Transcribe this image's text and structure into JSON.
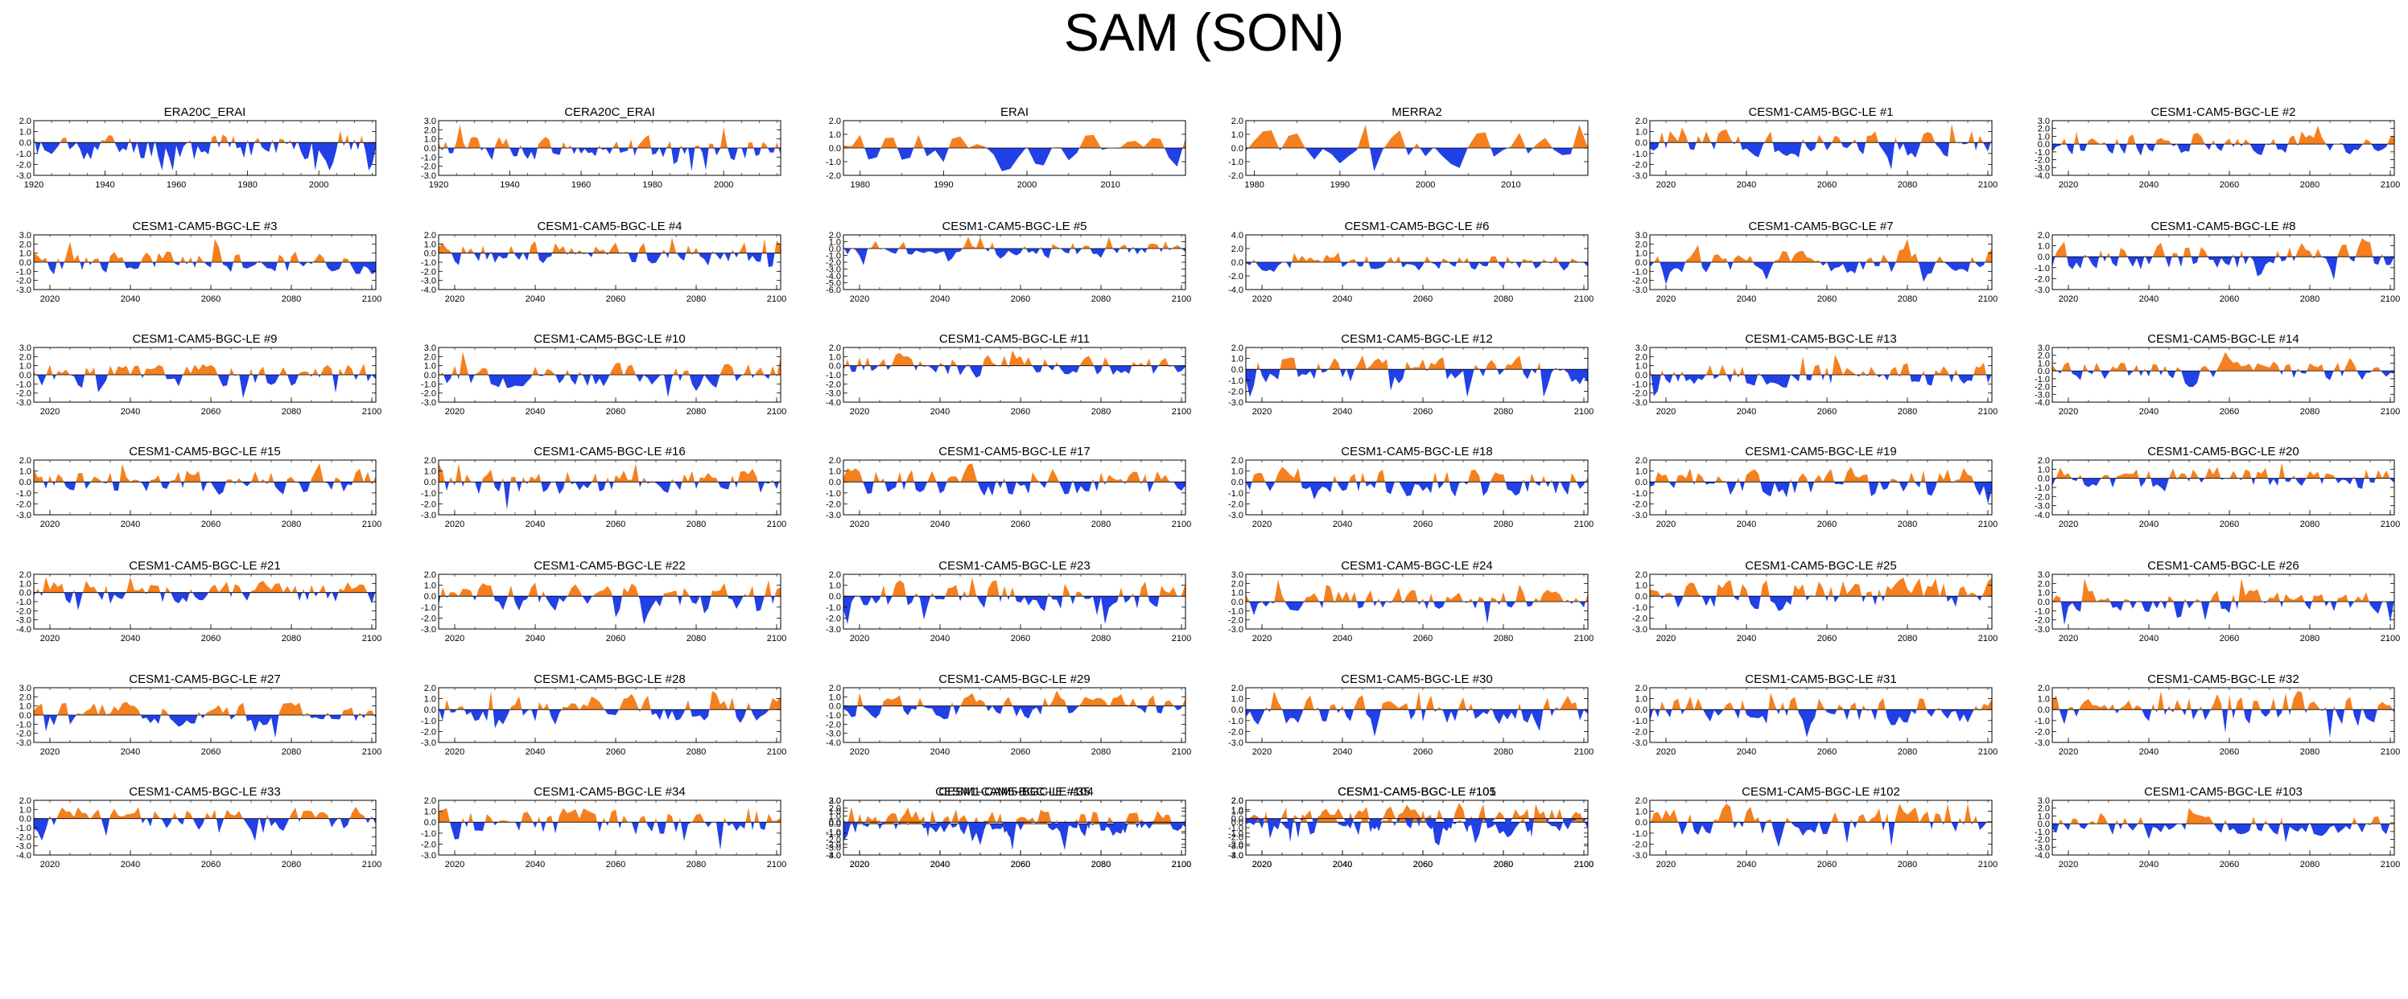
{
  "title": "SAM (SON)",
  "colors": {
    "positive": "#F5801F",
    "negative": "#2140E6",
    "axis": "#000000"
  },
  "chart_data": [
    {
      "type": "area",
      "title": "ERA20C_ERAI",
      "xlim": [
        1920,
        2016
      ],
      "xticks": [
        1920,
        1940,
        1960,
        1980,
        2000
      ],
      "ylim": [
        -3,
        2
      ],
      "yticks": [
        "2.0",
        "1.0",
        "0.0",
        "-1.0",
        "-2.0",
        "-3.0"
      ],
      "seed": 11,
      "bias": -0.3
    },
    {
      "type": "area",
      "title": "CERA20C_ERAI",
      "xlim": [
        1920,
        2016
      ],
      "xticks": [
        1920,
        1940,
        1960,
        1980,
        2000
      ],
      "ylim": [
        -3,
        3
      ],
      "yticks": [
        "3.0",
        "2.0",
        "1.0",
        "0.0",
        "-1.0",
        "-2.0",
        "-3.0"
      ],
      "seed": 12,
      "bias": 0
    },
    {
      "type": "area",
      "title": "ERAI",
      "xlim": [
        1978,
        2019
      ],
      "xticks": [
        1980,
        1990,
        2000,
        2010
      ],
      "ylim": [
        -2,
        2
      ],
      "yticks": [
        "2.0",
        "1.0",
        "0.0",
        "-1.0",
        "-2.0"
      ],
      "seed": 13,
      "bias": 0
    },
    {
      "type": "area",
      "title": "MERRA2",
      "xlim": [
        1979,
        2019
      ],
      "xticks": [
        1980,
        1990,
        2000,
        2010
      ],
      "ylim": [
        -2,
        2
      ],
      "yticks": [
        "2.0",
        "1.0",
        "0.0",
        "-1.0",
        "-2.0"
      ],
      "seed": 14,
      "bias": 0
    },
    {
      "type": "area",
      "title": "CESM1-CAM5-BGC-LE #1",
      "xlim": [
        2016,
        2101
      ],
      "xticks": [
        2020,
        2040,
        2060,
        2080,
        2100
      ],
      "ylim": [
        -3,
        2
      ],
      "yticks": [
        "2.0",
        "1.0",
        "0.0",
        "-1.0",
        "-2.0",
        "-3.0"
      ],
      "seed": 21,
      "bias": 0
    },
    {
      "type": "area",
      "title": "CESM1-CAM5-BGC-LE #2",
      "xlim": [
        2016,
        2101
      ],
      "xticks": [
        2020,
        2040,
        2060,
        2080,
        2100
      ],
      "ylim": [
        -4,
        3
      ],
      "yticks": [
        "3.0",
        "2.0",
        "1.0",
        "0.0",
        "-1.0",
        "-2.0",
        "-3.0",
        "-4.0"
      ],
      "seed": 22,
      "bias": 0
    },
    {
      "type": "area",
      "title": "CESM1-CAM5-BGC-LE #3",
      "xlim": [
        2016,
        2101
      ],
      "xticks": [
        2020,
        2040,
        2060,
        2080,
        2100
      ],
      "ylim": [
        -3,
        3
      ],
      "yticks": [
        "3.0",
        "2.0",
        "1.0",
        "0.0",
        "-1.0",
        "-2.0",
        "-3.0"
      ],
      "seed": 23,
      "bias": 0
    },
    {
      "type": "area",
      "title": "CESM1-CAM5-BGC-LE #4",
      "xlim": [
        2016,
        2101
      ],
      "xticks": [
        2020,
        2040,
        2060,
        2080,
        2100
      ],
      "ylim": [
        -4,
        2
      ],
      "yticks": [
        "2.0",
        "1.0",
        "0.0",
        "-1.0",
        "-2.0",
        "-3.0",
        "-4.0"
      ],
      "seed": 24,
      "bias": 0
    },
    {
      "type": "area",
      "title": "CESM1-CAM5-BGC-LE #5",
      "xlim": [
        2016,
        2101
      ],
      "xticks": [
        2020,
        2040,
        2060,
        2080,
        2100
      ],
      "ylim": [
        -6,
        2
      ],
      "yticks": [
        "2.0",
        "1.0",
        "0.0",
        "-1.0",
        "-2.0",
        "-3.0",
        "-4.0",
        "-5.0",
        "-6.0"
      ],
      "seed": 25,
      "bias": 0
    },
    {
      "type": "area",
      "title": "CESM1-CAM5-BGC-LE #6",
      "xlim": [
        2016,
        2101
      ],
      "xticks": [
        2020,
        2040,
        2060,
        2080,
        2100
      ],
      "ylim": [
        -4,
        4
      ],
      "yticks": [
        "4.0",
        "2.0",
        "0.0",
        "-2.0",
        "-4.0"
      ],
      "seed": 26,
      "bias": 0
    },
    {
      "type": "area",
      "title": "CESM1-CAM5-BGC-LE #7",
      "xlim": [
        2016,
        2101
      ],
      "xticks": [
        2020,
        2040,
        2060,
        2080,
        2100
      ],
      "ylim": [
        -3,
        3
      ],
      "yticks": [
        "3.0",
        "2.0",
        "1.0",
        "0.0",
        "-1.0",
        "-2.0",
        "-3.0"
      ],
      "seed": 27,
      "bias": 0
    },
    {
      "type": "area",
      "title": "CESM1-CAM5-BGC-LE #8",
      "xlim": [
        2016,
        2101
      ],
      "xticks": [
        2020,
        2040,
        2060,
        2080,
        2100
      ],
      "ylim": [
        -3,
        2
      ],
      "yticks": [
        "2.0",
        "1.0",
        "0.0",
        "-1.0",
        "-2.0",
        "-3.0"
      ],
      "seed": 28,
      "bias": 0
    },
    {
      "type": "area",
      "title": "CESM1-CAM5-BGC-LE #9",
      "xlim": [
        2016,
        2101
      ],
      "xticks": [
        2020,
        2040,
        2060,
        2080,
        2100
      ],
      "ylim": [
        -3,
        3
      ],
      "yticks": [
        "3.0",
        "2.0",
        "1.0",
        "0.0",
        "-1.0",
        "-2.0",
        "-3.0"
      ],
      "seed": 31,
      "bias": 0
    },
    {
      "type": "area",
      "title": "CESM1-CAM5-BGC-LE #10",
      "xlim": [
        2016,
        2101
      ],
      "xticks": [
        2020,
        2040,
        2060,
        2080,
        2100
      ],
      "ylim": [
        -3,
        3
      ],
      "yticks": [
        "3.0",
        "2.0",
        "1.0",
        "0.0",
        "-1.0",
        "-2.0",
        "-3.0"
      ],
      "seed": 32,
      "bias": 0
    },
    {
      "type": "area",
      "title": "CESM1-CAM5-BGC-LE #11",
      "xlim": [
        2016,
        2101
      ],
      "xticks": [
        2020,
        2040,
        2060,
        2080,
        2100
      ],
      "ylim": [
        -4,
        2
      ],
      "yticks": [
        "2.0",
        "1.0",
        "0.0",
        "-1.0",
        "-2.0",
        "-3.0",
        "-4.0"
      ],
      "seed": 33,
      "bias": 0
    },
    {
      "type": "area",
      "title": "CESM1-CAM5-BGC-LE #12",
      "xlim": [
        2016,
        2101
      ],
      "xticks": [
        2020,
        2040,
        2060,
        2080,
        2100
      ],
      "ylim": [
        -3,
        2
      ],
      "yticks": [
        "2.0",
        "1.0",
        "0.0",
        "-1.0",
        "-2.0",
        "-3.0"
      ],
      "seed": 34,
      "bias": 0
    },
    {
      "type": "area",
      "title": "CESM1-CAM5-BGC-LE #13",
      "xlim": [
        2016,
        2101
      ],
      "xticks": [
        2020,
        2040,
        2060,
        2080,
        2100
      ],
      "ylim": [
        -3,
        3
      ],
      "yticks": [
        "3.0",
        "2.0",
        "1.0",
        "0.0",
        "-1.0",
        "-2.0",
        "-3.0"
      ],
      "seed": 35,
      "bias": 0
    },
    {
      "type": "area",
      "title": "CESM1-CAM5-BGC-LE #14",
      "xlim": [
        2016,
        2101
      ],
      "xticks": [
        2020,
        2040,
        2060,
        2080,
        2100
      ],
      "ylim": [
        -4,
        3
      ],
      "yticks": [
        "3.0",
        "2.0",
        "1.0",
        "0.0",
        "-1.0",
        "-2.0",
        "-3.0",
        "-4.0"
      ],
      "seed": 36,
      "bias": 0
    },
    {
      "type": "area",
      "title": "CESM1-CAM5-BGC-LE #15",
      "xlim": [
        2016,
        2101
      ],
      "xticks": [
        2020,
        2040,
        2060,
        2080,
        2100
      ],
      "ylim": [
        -3,
        2
      ],
      "yticks": [
        "2.0",
        "1.0",
        "0.0",
        "-1.0",
        "-2.0",
        "-3.0"
      ],
      "seed": 41,
      "bias": 0
    },
    {
      "type": "area",
      "title": "CESM1-CAM5-BGC-LE #16",
      "xlim": [
        2016,
        2101
      ],
      "xticks": [
        2020,
        2040,
        2060,
        2080,
        2100
      ],
      "ylim": [
        -3,
        2
      ],
      "yticks": [
        "2.0",
        "1.0",
        "0.0",
        "-1.0",
        "-2.0",
        "-3.0"
      ],
      "seed": 42,
      "bias": 0
    },
    {
      "type": "area",
      "title": "CESM1-CAM5-BGC-LE #17",
      "xlim": [
        2016,
        2101
      ],
      "xticks": [
        2020,
        2040,
        2060,
        2080,
        2100
      ],
      "ylim": [
        -3,
        2
      ],
      "yticks": [
        "2.0",
        "1.0",
        "0.0",
        "-1.0",
        "-2.0",
        "-3.0"
      ],
      "seed": 43,
      "bias": 0
    },
    {
      "type": "area",
      "title": "CESM1-CAM5-BGC-LE #18",
      "xlim": [
        2016,
        2101
      ],
      "xticks": [
        2020,
        2040,
        2060,
        2080,
        2100
      ],
      "ylim": [
        -3,
        2
      ],
      "yticks": [
        "2.0",
        "1.0",
        "0.0",
        "-1.0",
        "-2.0",
        "-3.0"
      ],
      "seed": 44,
      "bias": 0
    },
    {
      "type": "area",
      "title": "CESM1-CAM5-BGC-LE #19",
      "xlim": [
        2016,
        2101
      ],
      "xticks": [
        2020,
        2040,
        2060,
        2080,
        2100
      ],
      "ylim": [
        -3,
        2
      ],
      "yticks": [
        "2.0",
        "1.0",
        "0.0",
        "-1.0",
        "-2.0",
        "-3.0"
      ],
      "seed": 45,
      "bias": 0
    },
    {
      "type": "area",
      "title": "CESM1-CAM5-BGC-LE #20",
      "xlim": [
        2016,
        2101
      ],
      "xticks": [
        2020,
        2040,
        2060,
        2080,
        2100
      ],
      "ylim": [
        -4,
        2
      ],
      "yticks": [
        "2.0",
        "1.0",
        "0.0",
        "-1.0",
        "-2.0",
        "-3.0",
        "-4.0"
      ],
      "seed": 46,
      "bias": 0
    },
    {
      "type": "area",
      "title": "CESM1-CAM5-BGC-LE #21",
      "xlim": [
        2016,
        2101
      ],
      "xticks": [
        2020,
        2040,
        2060,
        2080,
        2100
      ],
      "ylim": [
        -4,
        2
      ],
      "yticks": [
        "2.0",
        "1.0",
        "0.0",
        "-1.0",
        "-2.0",
        "-3.0",
        "-4.0"
      ],
      "seed": 51,
      "bias": 0
    },
    {
      "type": "area",
      "title": "CESM1-CAM5-BGC-LE #22",
      "xlim": [
        2016,
        2101
      ],
      "xticks": [
        2020,
        2040,
        2060,
        2080,
        2100
      ],
      "ylim": [
        -3,
        2
      ],
      "yticks": [
        "2.0",
        "1.0",
        "0.0",
        "-1.0",
        "-2.0",
        "-3.0"
      ],
      "seed": 52,
      "bias": 0
    },
    {
      "type": "area",
      "title": "CESM1-CAM5-BGC-LE #23",
      "xlim": [
        2016,
        2101
      ],
      "xticks": [
        2020,
        2040,
        2060,
        2080,
        2100
      ],
      "ylim": [
        -3,
        2
      ],
      "yticks": [
        "2.0",
        "1.0",
        "0.0",
        "-1.0",
        "-2.0",
        "-3.0"
      ],
      "seed": 53,
      "bias": 0
    },
    {
      "type": "area",
      "title": "CESM1-CAM5-BGC-LE #24",
      "xlim": [
        2016,
        2101
      ],
      "xticks": [
        2020,
        2040,
        2060,
        2080,
        2100
      ],
      "ylim": [
        -3,
        3
      ],
      "yticks": [
        "3.0",
        "2.0",
        "1.0",
        "0.0",
        "-1.0",
        "-2.0",
        "-3.0"
      ],
      "seed": 54,
      "bias": 0
    },
    {
      "type": "area",
      "title": "CESM1-CAM5-BGC-LE #25",
      "xlim": [
        2016,
        2101
      ],
      "xticks": [
        2020,
        2040,
        2060,
        2080,
        2100
      ],
      "ylim": [
        -3,
        2
      ],
      "yticks": [
        "2.0",
        "1.0",
        "0.0",
        "-1.0",
        "-2.0",
        "-3.0"
      ],
      "seed": 55,
      "bias": 0.2
    },
    {
      "type": "area",
      "title": "CESM1-CAM5-BGC-LE #26",
      "xlim": [
        2016,
        2101
      ],
      "xticks": [
        2020,
        2040,
        2060,
        2080,
        2100
      ],
      "ylim": [
        -3,
        3
      ],
      "yticks": [
        "3.0",
        "2.0",
        "1.0",
        "0.0",
        "-1.0",
        "-2.0",
        "-3.0"
      ],
      "seed": 56,
      "bias": 0
    },
    {
      "type": "area",
      "title": "CESM1-CAM5-BGC-LE #27",
      "xlim": [
        2016,
        2101
      ],
      "xticks": [
        2020,
        2040,
        2060,
        2080,
        2100
      ],
      "ylim": [
        -3,
        3
      ],
      "yticks": [
        "3.0",
        "2.0",
        "1.0",
        "0.0",
        "-1.0",
        "-2.0",
        "-3.0"
      ],
      "seed": 61,
      "bias": 0
    },
    {
      "type": "area",
      "title": "CESM1-CAM5-BGC-LE #28",
      "xlim": [
        2016,
        2101
      ],
      "xticks": [
        2020,
        2040,
        2060,
        2080,
        2100
      ],
      "ylim": [
        -3,
        2
      ],
      "yticks": [
        "2.0",
        "1.0",
        "0.0",
        "-1.0",
        "-2.0",
        "-3.0"
      ],
      "seed": 62,
      "bias": 0
    },
    {
      "type": "area",
      "title": "CESM1-CAM5-BGC-LE #29",
      "xlim": [
        2016,
        2101
      ],
      "xticks": [
        2020,
        2040,
        2060,
        2080,
        2100
      ],
      "ylim": [
        -4,
        2
      ],
      "yticks": [
        "2.0",
        "1.0",
        "0.0",
        "-1.0",
        "-2.0",
        "-3.0",
        "-4.0"
      ],
      "seed": 63,
      "bias": 0
    },
    {
      "type": "area",
      "title": "CESM1-CAM5-BGC-LE #30",
      "xlim": [
        2016,
        2101
      ],
      "xticks": [
        2020,
        2040,
        2060,
        2080,
        2100
      ],
      "ylim": [
        -3,
        2
      ],
      "yticks": [
        "2.0",
        "1.0",
        "0.0",
        "-1.0",
        "-2.0",
        "-3.0"
      ],
      "seed": 64,
      "bias": 0
    },
    {
      "type": "area",
      "title": "CESM1-CAM5-BGC-LE #31",
      "xlim": [
        2016,
        2101
      ],
      "xticks": [
        2020,
        2040,
        2060,
        2080,
        2100
      ],
      "ylim": [
        -3,
        2
      ],
      "yticks": [
        "2.0",
        "1.0",
        "0.0",
        "-1.0",
        "-2.0",
        "-3.0"
      ],
      "seed": 65,
      "bias": 0
    },
    {
      "type": "area",
      "title": "CESM1-CAM5-BGC-LE #32",
      "xlim": [
        2016,
        2101
      ],
      "xticks": [
        2020,
        2040,
        2060,
        2080,
        2100
      ],
      "ylim": [
        -3,
        2
      ],
      "yticks": [
        "2.0",
        "1.0",
        "0.0",
        "-1.0",
        "-2.0",
        "-3.0"
      ],
      "seed": 66,
      "bias": 0
    },
    {
      "type": "area",
      "title": "CESM1-CAM5-BGC-LE #33",
      "xlim": [
        2016,
        2101
      ],
      "xticks": [
        2020,
        2040,
        2060,
        2080,
        2100
      ],
      "ylim": [
        -4,
        2
      ],
      "yticks": [
        "2.0",
        "1.0",
        "0.0",
        "-1.0",
        "-2.0",
        "-3.0",
        "-4.0"
      ],
      "seed": 71,
      "bias": 0
    },
    {
      "type": "area",
      "title": "CESM1-CAM5-BGC-LE #34",
      "xlim": [
        2016,
        2101
      ],
      "xticks": [
        2020,
        2040,
        2060,
        2080,
        2100
      ],
      "ylim": [
        -3,
        2
      ],
      "yticks": [
        "2.0",
        "1.0",
        "0.0",
        "-1.0",
        "-2.0",
        "-3.0"
      ],
      "seed": 72,
      "bias": 0
    },
    {
      "type": "area",
      "title": "CESM1-CAM5-BGC-LE #35",
      "xlim": [
        2016,
        2101
      ],
      "xticks": [
        2020,
        2040,
        2060,
        2080,
        2100
      ],
      "ylim": [
        -4,
        3
      ],
      "yticks": [
        "3.0",
        "2.0",
        "1.0",
        "0.0",
        "-1.0",
        "-2.0",
        "-3.0",
        "-4.0"
      ],
      "seed": 73,
      "bias": 0
    },
    {
      "type": "area",
      "title": "CESM1-CAM5-BGC-LE #101",
      "xlim": [
        2016,
        2101
      ],
      "xticks": [
        2020,
        2040,
        2060,
        2080,
        2100
      ],
      "ylim": [
        -3,
        2
      ],
      "yticks": [
        "2.0",
        "1.0",
        "0.0",
        "-1.0",
        "-2.0",
        "-3.0"
      ],
      "seed": 74,
      "bias": 0
    },
    {
      "type": "area",
      "title": "CESM1-CAM5-BGC-LE #102",
      "xlim": [
        2016,
        2101
      ],
      "xticks": [
        2020,
        2040,
        2060,
        2080,
        2100
      ],
      "ylim": [
        -3,
        2
      ],
      "yticks": [
        "2.0",
        "1.0",
        "0.0",
        "-1.0",
        "-2.0",
        "-3.0"
      ],
      "seed": 75,
      "bias": 0
    },
    {
      "type": "area",
      "title": "CESM1-CAM5-BGC-LE #103",
      "xlim": [
        2016,
        2101
      ],
      "xticks": [
        2020,
        2040,
        2060,
        2080,
        2100
      ],
      "ylim": [
        -4,
        3
      ],
      "yticks": [
        "3.0",
        "2.0",
        "1.0",
        "0.0",
        "-1.0",
        "-2.0",
        "-3.0",
        "-4.0"
      ],
      "seed": 76,
      "bias": 0
    },
    {
      "type": "area",
      "title": "CESM1-CAM5-BGC-LE #104",
      "xlim": [
        2016,
        2101
      ],
      "xticks": [
        2020,
        2040,
        2060,
        2080,
        2100
      ],
      "ylim": [
        -3,
        2
      ],
      "yticks": [
        "2.0",
        "1.0",
        "0.0",
        "-1.0",
        "-2.0",
        "-3.0"
      ],
      "seed": 81,
      "bias": 0
    },
    {
      "type": "area",
      "title": "CESM1-CAM5-BGC-LE #105",
      "xlim": [
        2016,
        2101
      ],
      "xticks": [
        2020,
        2040,
        2060,
        2080,
        2100
      ],
      "ylim": [
        -4,
        2
      ],
      "yticks": [
        "2.0",
        "1.0",
        "0.0",
        "-1.0",
        "-2.0",
        "-3.0",
        "-4.0"
      ],
      "seed": 82,
      "bias": 0
    }
  ]
}
